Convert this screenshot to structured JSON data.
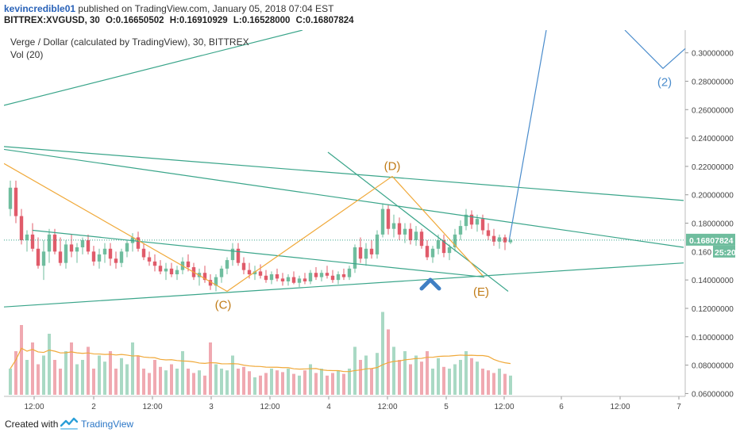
{
  "header": {
    "author": "kevincredible01",
    "published_text": "published on TradingView.com, January 05, 2018 07:04 EST",
    "symbol": "BITTREX:XVGUSD, 30",
    "open": "O:0.16650502",
    "high": "H:0.16910929",
    "low": "L:0.16528000",
    "close": "C:0.16807824"
  },
  "legend": {
    "title": "Verge / Dollar (calculated by TradingView), 30, BITTREX",
    "volume": "Vol (20)"
  },
  "footer": {
    "created_with": "Created with",
    "brand": "TradingView"
  },
  "colors": {
    "up": "#6fbd9e",
    "down": "#e05b6a",
    "wave": "#f0a93a",
    "trendline": "#3aa58a",
    "projection": "#4a8ccc",
    "volume_ma": "#f0a93a",
    "arrow": "#3f7fc4"
  },
  "chart_data": {
    "type": "candlestick",
    "price_axis": {
      "ylim": [
        0.058,
        0.316
      ],
      "ticks": [
        "0.30000000",
        "0.28000000",
        "0.26000000",
        "0.24000000",
        "0.22000000",
        "0.20000000",
        "0.18000000",
        "0.14000000",
        "0.12000000",
        "0.10000000",
        "0.08000000",
        "0.06000000"
      ],
      "tick_values": [
        0.3,
        0.28,
        0.26,
        0.24,
        0.22,
        0.2,
        0.18,
        0.14,
        0.12,
        0.1,
        0.08,
        0.06
      ],
      "partial_tick": "0.160",
      "partial_tick_value": 0.16,
      "current_price_label": "0.16807824",
      "current_price": 0.16807824,
      "countdown_label": "25:20"
    },
    "time_axis": {
      "labels": [
        "12:00",
        "2",
        "12:00",
        "3",
        "12:00",
        "4",
        "12:00",
        "5",
        "12:00",
        "6",
        "12:00",
        "7"
      ],
      "positions": [
        12,
        36,
        60,
        84,
        108,
        132,
        156,
        180,
        204,
        228,
        252,
        276
      ]
    },
    "wave_points": [
      {
        "label": "(C)",
        "x": 90,
        "y": 0.132
      },
      {
        "label": "(D)",
        "x": 158,
        "y": 0.213
      },
      {
        "label": "(E)",
        "x": 196,
        "y": 0.143
      },
      {
        "label": "(2)",
        "x": 270,
        "y": 0.289
      }
    ],
    "candles": [
      {
        "o": 0.19,
        "h": 0.21,
        "l": 0.185,
        "c": 0.205
      },
      {
        "o": 0.205,
        "h": 0.21,
        "l": 0.18,
        "c": 0.185
      },
      {
        "o": 0.185,
        "h": 0.19,
        "l": 0.165,
        "c": 0.168
      },
      {
        "o": 0.168,
        "h": 0.175,
        "l": 0.16,
        "c": 0.172
      },
      {
        "o": 0.172,
        "h": 0.18,
        "l": 0.16,
        "c": 0.162
      },
      {
        "o": 0.162,
        "h": 0.17,
        "l": 0.148,
        "c": 0.15
      },
      {
        "o": 0.15,
        "h": 0.168,
        "l": 0.14,
        "c": 0.16
      },
      {
        "o": 0.16,
        "h": 0.176,
        "l": 0.152,
        "c": 0.172
      },
      {
        "o": 0.172,
        "h": 0.176,
        "l": 0.158,
        "c": 0.16
      },
      {
        "o": 0.16,
        "h": 0.17,
        "l": 0.15,
        "c": 0.152
      },
      {
        "o": 0.152,
        "h": 0.168,
        "l": 0.148,
        "c": 0.165
      },
      {
        "o": 0.165,
        "h": 0.172,
        "l": 0.156,
        "c": 0.16
      },
      {
        "o": 0.16,
        "h": 0.166,
        "l": 0.152,
        "c": 0.163
      },
      {
        "o": 0.163,
        "h": 0.17,
        "l": 0.158,
        "c": 0.168
      },
      {
        "o": 0.168,
        "h": 0.172,
        "l": 0.158,
        "c": 0.16
      },
      {
        "o": 0.16,
        "h": 0.164,
        "l": 0.15,
        "c": 0.153
      },
      {
        "o": 0.153,
        "h": 0.162,
        "l": 0.148,
        "c": 0.158
      },
      {
        "o": 0.158,
        "h": 0.166,
        "l": 0.152,
        "c": 0.162
      },
      {
        "o": 0.162,
        "h": 0.166,
        "l": 0.15,
        "c": 0.155
      },
      {
        "o": 0.155,
        "h": 0.16,
        "l": 0.148,
        "c": 0.152
      },
      {
        "o": 0.152,
        "h": 0.162,
        "l": 0.149,
        "c": 0.16
      },
      {
        "o": 0.16,
        "h": 0.168,
        "l": 0.156,
        "c": 0.166
      },
      {
        "o": 0.166,
        "h": 0.173,
        "l": 0.16,
        "c": 0.17
      },
      {
        "o": 0.17,
        "h": 0.174,
        "l": 0.16,
        "c": 0.162
      },
      {
        "o": 0.162,
        "h": 0.166,
        "l": 0.154,
        "c": 0.156
      },
      {
        "o": 0.156,
        "h": 0.16,
        "l": 0.15,
        "c": 0.153
      },
      {
        "o": 0.153,
        "h": 0.158,
        "l": 0.146,
        "c": 0.15
      },
      {
        "o": 0.15,
        "h": 0.154,
        "l": 0.144,
        "c": 0.146
      },
      {
        "o": 0.146,
        "h": 0.152,
        "l": 0.14,
        "c": 0.148
      },
      {
        "o": 0.148,
        "h": 0.152,
        "l": 0.142,
        "c": 0.144
      },
      {
        "o": 0.144,
        "h": 0.15,
        "l": 0.14,
        "c": 0.147
      },
      {
        "o": 0.147,
        "h": 0.156,
        "l": 0.144,
        "c": 0.153
      },
      {
        "o": 0.153,
        "h": 0.158,
        "l": 0.146,
        "c": 0.149
      },
      {
        "o": 0.149,
        "h": 0.152,
        "l": 0.14,
        "c": 0.142
      },
      {
        "o": 0.142,
        "h": 0.148,
        "l": 0.136,
        "c": 0.145
      },
      {
        "o": 0.145,
        "h": 0.15,
        "l": 0.138,
        "c": 0.14
      },
      {
        "o": 0.14,
        "h": 0.144,
        "l": 0.133,
        "c": 0.136
      },
      {
        "o": 0.136,
        "h": 0.144,
        "l": 0.132,
        "c": 0.142
      },
      {
        "o": 0.142,
        "h": 0.15,
        "l": 0.138,
        "c": 0.148
      },
      {
        "o": 0.148,
        "h": 0.156,
        "l": 0.144,
        "c": 0.154
      },
      {
        "o": 0.154,
        "h": 0.166,
        "l": 0.15,
        "c": 0.162
      },
      {
        "o": 0.162,
        "h": 0.166,
        "l": 0.15,
        "c": 0.152
      },
      {
        "o": 0.152,
        "h": 0.156,
        "l": 0.144,
        "c": 0.147
      },
      {
        "o": 0.147,
        "h": 0.152,
        "l": 0.141,
        "c": 0.144
      },
      {
        "o": 0.144,
        "h": 0.15,
        "l": 0.14,
        "c": 0.146
      },
      {
        "o": 0.146,
        "h": 0.151,
        "l": 0.141,
        "c": 0.143
      },
      {
        "o": 0.143,
        "h": 0.147,
        "l": 0.138,
        "c": 0.14
      },
      {
        "o": 0.14,
        "h": 0.146,
        "l": 0.137,
        "c": 0.144
      },
      {
        "o": 0.144,
        "h": 0.148,
        "l": 0.139,
        "c": 0.141
      },
      {
        "o": 0.141,
        "h": 0.145,
        "l": 0.136,
        "c": 0.139
      },
      {
        "o": 0.139,
        "h": 0.144,
        "l": 0.136,
        "c": 0.142
      },
      {
        "o": 0.142,
        "h": 0.146,
        "l": 0.137,
        "c": 0.138
      },
      {
        "o": 0.138,
        "h": 0.143,
        "l": 0.135,
        "c": 0.141
      },
      {
        "o": 0.141,
        "h": 0.145,
        "l": 0.137,
        "c": 0.139
      },
      {
        "o": 0.139,
        "h": 0.147,
        "l": 0.137,
        "c": 0.145
      },
      {
        "o": 0.145,
        "h": 0.149,
        "l": 0.14,
        "c": 0.142
      },
      {
        "o": 0.142,
        "h": 0.147,
        "l": 0.139,
        "c": 0.145
      },
      {
        "o": 0.145,
        "h": 0.15,
        "l": 0.141,
        "c": 0.143
      },
      {
        "o": 0.143,
        "h": 0.147,
        "l": 0.138,
        "c": 0.14
      },
      {
        "o": 0.14,
        "h": 0.146,
        "l": 0.137,
        "c": 0.144
      },
      {
        "o": 0.144,
        "h": 0.148,
        "l": 0.14,
        "c": 0.142
      },
      {
        "o": 0.142,
        "h": 0.15,
        "l": 0.14,
        "c": 0.148
      },
      {
        "o": 0.148,
        "h": 0.165,
        "l": 0.145,
        "c": 0.163
      },
      {
        "o": 0.163,
        "h": 0.17,
        "l": 0.152,
        "c": 0.155
      },
      {
        "o": 0.155,
        "h": 0.166,
        "l": 0.15,
        "c": 0.162
      },
      {
        "o": 0.162,
        "h": 0.168,
        "l": 0.155,
        "c": 0.158
      },
      {
        "o": 0.158,
        "h": 0.175,
        "l": 0.155,
        "c": 0.172
      },
      {
        "o": 0.172,
        "h": 0.194,
        "l": 0.17,
        "c": 0.19
      },
      {
        "o": 0.19,
        "h": 0.193,
        "l": 0.172,
        "c": 0.176
      },
      {
        "o": 0.176,
        "h": 0.186,
        "l": 0.17,
        "c": 0.18
      },
      {
        "o": 0.18,
        "h": 0.184,
        "l": 0.168,
        "c": 0.172
      },
      {
        "o": 0.172,
        "h": 0.18,
        "l": 0.166,
        "c": 0.176
      },
      {
        "o": 0.176,
        "h": 0.18,
        "l": 0.165,
        "c": 0.168
      },
      {
        "o": 0.168,
        "h": 0.178,
        "l": 0.164,
        "c": 0.174
      },
      {
        "o": 0.174,
        "h": 0.176,
        "l": 0.162,
        "c": 0.164
      },
      {
        "o": 0.164,
        "h": 0.168,
        "l": 0.154,
        "c": 0.156
      },
      {
        "o": 0.156,
        "h": 0.164,
        "l": 0.152,
        "c": 0.162
      },
      {
        "o": 0.162,
        "h": 0.172,
        "l": 0.158,
        "c": 0.168
      },
      {
        "o": 0.168,
        "h": 0.172,
        "l": 0.156,
        "c": 0.159
      },
      {
        "o": 0.159,
        "h": 0.165,
        "l": 0.154,
        "c": 0.163
      },
      {
        "o": 0.163,
        "h": 0.176,
        "l": 0.16,
        "c": 0.172
      },
      {
        "o": 0.172,
        "h": 0.182,
        "l": 0.168,
        "c": 0.178
      },
      {
        "o": 0.178,
        "h": 0.19,
        "l": 0.175,
        "c": 0.186
      },
      {
        "o": 0.186,
        "h": 0.189,
        "l": 0.176,
        "c": 0.179
      },
      {
        "o": 0.179,
        "h": 0.186,
        "l": 0.174,
        "c": 0.183
      },
      {
        "o": 0.183,
        "h": 0.186,
        "l": 0.172,
        "c": 0.175
      },
      {
        "o": 0.175,
        "h": 0.18,
        "l": 0.168,
        "c": 0.171
      },
      {
        "o": 0.171,
        "h": 0.176,
        "l": 0.164,
        "c": 0.167
      },
      {
        "o": 0.167,
        "h": 0.172,
        "l": 0.162,
        "c": 0.17
      },
      {
        "o": 0.17,
        "h": 0.172,
        "l": 0.161,
        "c": 0.1665
      },
      {
        "o": 0.1665,
        "h": 0.1691,
        "l": 0.1653,
        "c": 0.1681
      }
    ],
    "volume": [
      0.3,
      0.5,
      0.8,
      0.4,
      0.6,
      0.35,
      0.45,
      0.7,
      0.4,
      0.3,
      0.5,
      0.6,
      0.35,
      0.4,
      0.55,
      0.3,
      0.45,
      0.38,
      0.5,
      0.3,
      0.42,
      0.35,
      0.6,
      0.45,
      0.3,
      0.25,
      0.4,
      0.32,
      0.28,
      0.35,
      0.3,
      0.5,
      0.3,
      0.25,
      0.28,
      0.22,
      0.6,
      0.35,
      0.3,
      0.28,
      0.45,
      0.3,
      0.32,
      0.27,
      0.2,
      0.22,
      0.25,
      0.3,
      0.28,
      0.26,
      0.3,
      0.24,
      0.22,
      0.28,
      0.35,
      0.25,
      0.3,
      0.22,
      0.25,
      0.28,
      0.24,
      0.3,
      0.55,
      0.4,
      0.45,
      0.3,
      0.48,
      0.95,
      0.75,
      0.55,
      0.4,
      0.5,
      0.35,
      0.45,
      0.38,
      0.5,
      0.3,
      0.42,
      0.32,
      0.3,
      0.35,
      0.4,
      0.5,
      0.42,
      0.38,
      0.3,
      0.28,
      0.25,
      0.3,
      0.24,
      0.22
    ]
  }
}
